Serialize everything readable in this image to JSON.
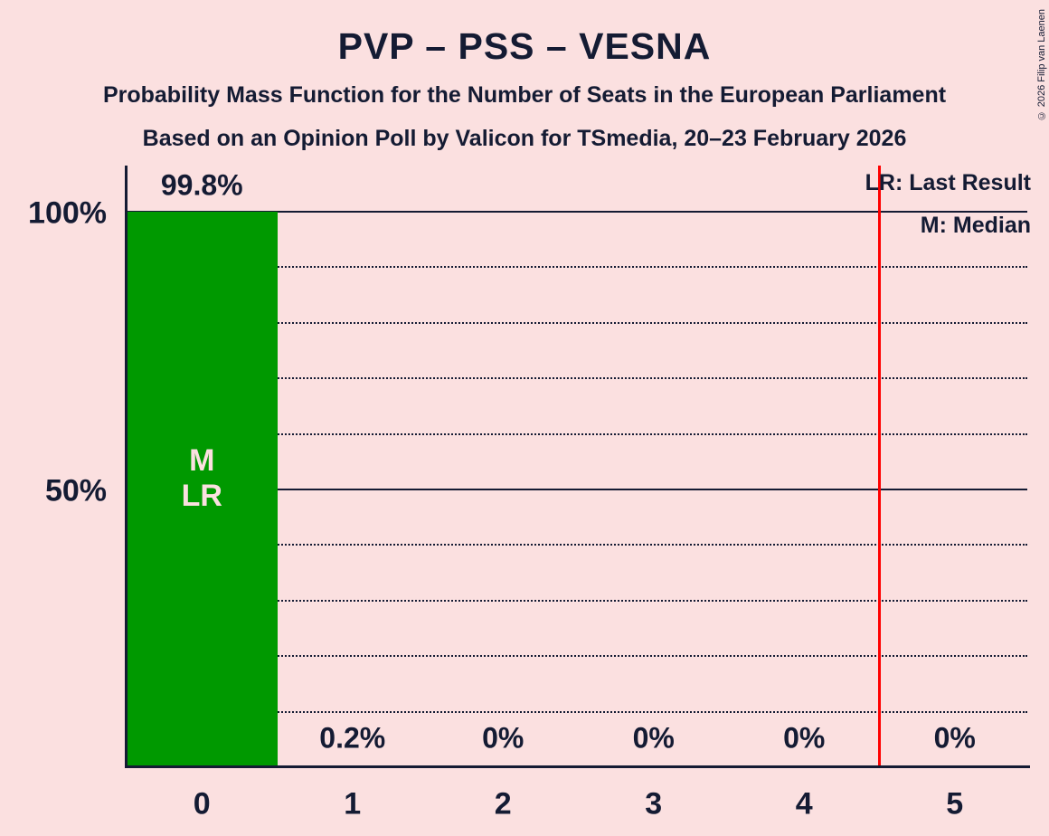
{
  "title": "PVP – PSS – VESNA",
  "subtitle1": "Probability Mass Function for the Number of Seats in the European Parliament",
  "subtitle2": "Based on an Opinion Poll by Valicon for TSmedia, 20–23 February 2026",
  "copyright": "© 2026 Filip van Laenen",
  "legend": {
    "lr": "LR: Last Result",
    "m": "M: Median"
  },
  "colors": {
    "background": "#FBE0E0",
    "text": "#141B33",
    "bar": "#009900",
    "threshold_line": "#FF0000"
  },
  "chart_data": {
    "type": "bar",
    "title": "PVP – PSS – VESNA",
    "categories": [
      "0",
      "1",
      "2",
      "3",
      "4",
      "5"
    ],
    "values": [
      99.8,
      0.2,
      0,
      0,
      0,
      0
    ],
    "value_labels": [
      "99.8%",
      "0.2%",
      "0%",
      "0%",
      "0%",
      "0%"
    ],
    "ylim": [
      0,
      100
    ],
    "y_ticks": [
      {
        "value": 100,
        "label": "100%"
      },
      {
        "value": 50,
        "label": "50%"
      }
    ],
    "gridlines": {
      "dotted_percents": [
        10,
        20,
        30,
        40,
        60,
        70,
        80,
        90
      ],
      "solid_percents": [
        50,
        100
      ]
    },
    "median_seat": 0,
    "last_result_seat": 0,
    "bar_annotation_lines": [
      "M",
      "LR"
    ],
    "threshold_line_at": 4.5,
    "legend_position": "top-right",
    "grid": "horizontal-only"
  }
}
